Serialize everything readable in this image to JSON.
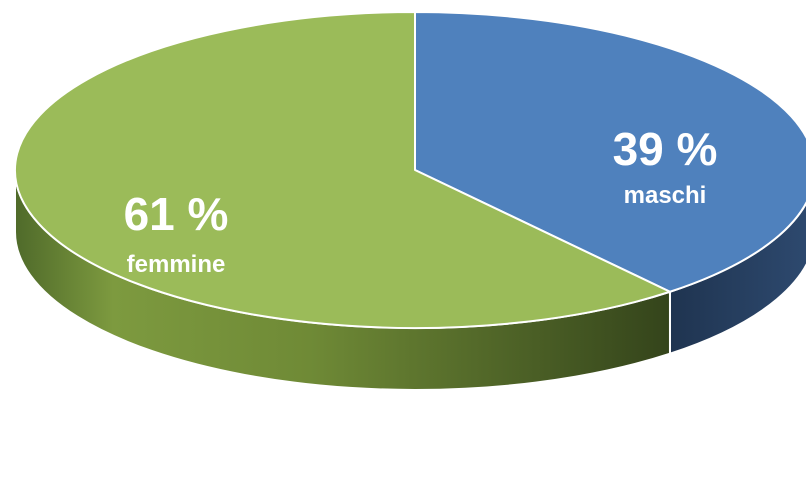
{
  "chart_data": {
    "type": "pie",
    "style": "3d",
    "slices": [
      {
        "label": "maschi",
        "value": 39,
        "value_text": "39 %",
        "color": "#4f81bd",
        "side_color": "#2a4566"
      },
      {
        "label": "femmine",
        "value": 61,
        "value_text": "61 %",
        "color": "#9bbb59",
        "side_color": "#5a6e2e"
      }
    ]
  }
}
